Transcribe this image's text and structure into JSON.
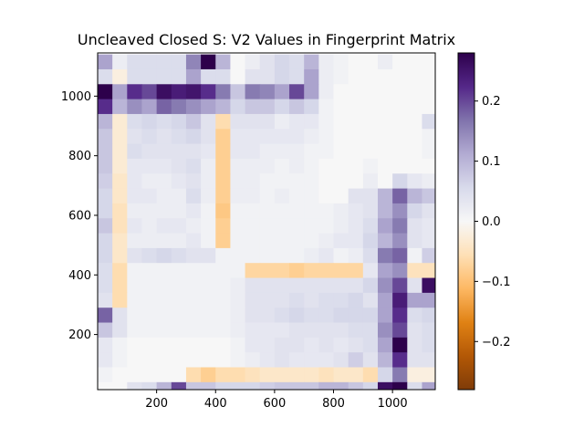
{
  "chart_data": {
    "type": "heatmap",
    "title": "Uncleaved Closed S: V2 Values in Fingerprint Matrix",
    "xlabel": "",
    "ylabel": "",
    "x_range": [
      0,
      1145
    ],
    "y_range": [
      15,
      1145
    ],
    "x_ticks": [
      200,
      400,
      600,
      800,
      1000
    ],
    "y_ticks": [
      200,
      400,
      600,
      800,
      1000
    ],
    "colorbar": {
      "colormap": "PuOr",
      "vmin": -0.28,
      "vmax": 0.28,
      "ticks": [
        -0.2,
        -0.1,
        0.0,
        0.1,
        0.2
      ],
      "tick_labels": [
        "−0.2",
        "−0.1",
        "0.0",
        "0.1",
        "0.2"
      ]
    },
    "grid": false,
    "cell_size": 50,
    "rows_top_to_bottom_y_centers": [
      1115,
      1065,
      1015,
      965,
      915,
      865,
      815,
      765,
      715,
      665,
      615,
      565,
      515,
      465,
      415,
      365,
      315,
      265,
      215,
      165,
      115,
      65,
      15
    ],
    "cols_left_to_right_x_centers": [
      25,
      75,
      125,
      175,
      225,
      275,
      325,
      375,
      425,
      475,
      525,
      575,
      625,
      675,
      725,
      775,
      825,
      875,
      925,
      975,
      1025,
      1075,
      1125
    ],
    "values_top_to_bottom": [
      [
        0.12,
        0.02,
        0.05,
        0.05,
        0.05,
        0.05,
        0.15,
        0.28,
        0.1,
        0.0,
        0.02,
        0.04,
        0.06,
        0.05,
        0.1,
        0.02,
        0.01,
        0.0,
        0.0,
        0.02,
        0.0,
        0.0,
        0.0
      ],
      [
        0.05,
        -0.02,
        0.05,
        0.05,
        0.05,
        0.05,
        0.12,
        0.05,
        0.05,
        0.0,
        0.04,
        0.04,
        0.06,
        0.05,
        0.12,
        0.02,
        0.01,
        0.0,
        0.0,
        0.0,
        0.0,
        0.0,
        0.0
      ],
      [
        0.28,
        0.12,
        0.22,
        0.2,
        0.26,
        0.24,
        0.25,
        0.22,
        0.16,
        0.08,
        0.16,
        0.15,
        0.12,
        0.2,
        0.12,
        0.02,
        0.0,
        0.0,
        0.0,
        0.0,
        0.0,
        0.0,
        0.0
      ],
      [
        0.22,
        0.1,
        0.14,
        0.12,
        0.18,
        0.16,
        0.14,
        0.12,
        0.1,
        0.06,
        0.08,
        0.08,
        0.06,
        0.08,
        0.06,
        0.01,
        0.0,
        0.0,
        0.0,
        0.0,
        0.0,
        0.0,
        0.0
      ],
      [
        0.1,
        -0.03,
        0.05,
        0.06,
        0.05,
        0.06,
        0.08,
        0.04,
        -0.06,
        0.04,
        0.04,
        0.04,
        0.02,
        0.03,
        0.03,
        0.01,
        0.0,
        0.0,
        0.0,
        0.0,
        0.0,
        0.0,
        0.05
      ],
      [
        0.08,
        -0.03,
        0.04,
        0.05,
        0.04,
        0.05,
        0.06,
        0.04,
        -0.08,
        0.03,
        0.03,
        0.03,
        0.03,
        0.03,
        0.02,
        0.01,
        0.0,
        0.0,
        0.0,
        0.0,
        0.0,
        0.0,
        0.01
      ],
      [
        0.08,
        -0.03,
        0.05,
        0.04,
        0.04,
        0.04,
        0.04,
        0.03,
        -0.08,
        0.03,
        0.03,
        0.02,
        0.02,
        0.02,
        0.01,
        0.01,
        0.0,
        0.0,
        0.0,
        0.0,
        0.0,
        0.0,
        0.01
      ],
      [
        0.08,
        -0.03,
        0.03,
        0.03,
        0.03,
        0.04,
        0.05,
        0.02,
        -0.08,
        0.02,
        0.02,
        0.02,
        0.01,
        0.02,
        0.01,
        0.0,
        0.0,
        0.0,
        0.01,
        0.0,
        0.0,
        0.0,
        0.0
      ],
      [
        0.07,
        -0.04,
        0.03,
        0.02,
        0.02,
        0.03,
        0.04,
        0.02,
        -0.08,
        0.02,
        0.02,
        0.01,
        0.01,
        0.01,
        0.01,
        0.0,
        0.0,
        0.0,
        0.02,
        0.0,
        0.06,
        0.03,
        0.02
      ],
      [
        0.06,
        -0.04,
        0.03,
        0.03,
        0.02,
        0.02,
        0.05,
        0.02,
        -0.08,
        0.02,
        0.02,
        0.01,
        0.02,
        0.01,
        0.01,
        0.0,
        0.0,
        0.04,
        0.04,
        0.1,
        0.18,
        0.1,
        0.08
      ],
      [
        0.06,
        -0.05,
        0.02,
        0.02,
        0.02,
        0.02,
        0.03,
        0.01,
        -0.09,
        0.01,
        0.01,
        0.01,
        0.01,
        0.01,
        0.01,
        0.01,
        0.02,
        0.03,
        0.04,
        0.1,
        0.14,
        0.06,
        0.04
      ],
      [
        0.08,
        -0.05,
        0.03,
        0.02,
        0.03,
        0.03,
        0.02,
        0.01,
        -0.08,
        0.01,
        0.01,
        0.01,
        0.01,
        0.01,
        0.01,
        0.01,
        0.02,
        0.03,
        0.05,
        0.12,
        0.16,
        0.04,
        0.03
      ],
      [
        0.06,
        -0.04,
        0.02,
        0.02,
        0.02,
        0.02,
        0.03,
        0.01,
        -0.08,
        0.01,
        0.01,
        0.01,
        0.01,
        0.01,
        0.01,
        0.02,
        0.03,
        0.03,
        0.06,
        0.1,
        0.14,
        0.04,
        0.03
      ],
      [
        0.06,
        -0.04,
        0.04,
        0.05,
        0.06,
        0.05,
        0.04,
        0.04,
        0.01,
        0.01,
        0.01,
        0.01,
        0.01,
        0.01,
        0.02,
        0.03,
        0.01,
        0.02,
        0.05,
        0.16,
        0.18,
        0.01,
        0.07
      ],
      [
        0.05,
        -0.06,
        0.01,
        0.01,
        0.01,
        0.01,
        0.01,
        0.01,
        0.01,
        0.01,
        -0.07,
        -0.07,
        -0.07,
        -0.08,
        -0.07,
        -0.07,
        -0.07,
        -0.07,
        0.03,
        0.12,
        0.14,
        -0.05,
        -0.05
      ],
      [
        0.05,
        -0.06,
        0.01,
        0.01,
        0.01,
        0.01,
        0.01,
        0.01,
        0.01,
        0.02,
        0.04,
        0.04,
        0.04,
        0.04,
        0.04,
        0.04,
        0.04,
        0.04,
        0.06,
        0.14,
        0.2,
        0.04,
        0.26
      ],
      [
        0.04,
        -0.06,
        0.01,
        0.01,
        0.01,
        0.01,
        0.01,
        0.01,
        0.01,
        0.02,
        0.04,
        0.04,
        0.04,
        0.05,
        0.04,
        0.05,
        0.05,
        0.06,
        0.04,
        0.12,
        0.24,
        0.12,
        0.12
      ],
      [
        0.18,
        0.04,
        0.01,
        0.01,
        0.01,
        0.01,
        0.01,
        0.01,
        0.01,
        0.02,
        0.04,
        0.04,
        0.05,
        0.06,
        0.05,
        0.05,
        0.06,
        0.06,
        0.06,
        0.12,
        0.22,
        0.05,
        0.06
      ],
      [
        0.08,
        0.04,
        0.01,
        0.01,
        0.01,
        0.01,
        0.01,
        0.01,
        0.01,
        0.02,
        0.03,
        0.03,
        0.03,
        0.04,
        0.04,
        0.04,
        0.04,
        0.05,
        0.05,
        0.14,
        0.2,
        0.04,
        0.05
      ],
      [
        0.03,
        0.01,
        0.0,
        0.0,
        0.0,
        0.0,
        0.0,
        0.0,
        0.0,
        0.01,
        0.03,
        0.03,
        0.04,
        0.04,
        0.03,
        0.04,
        0.03,
        0.04,
        0.05,
        0.12,
        0.28,
        0.04,
        0.05
      ],
      [
        0.03,
        0.01,
        0.0,
        0.0,
        0.0,
        0.0,
        0.0,
        0.0,
        0.0,
        0.01,
        0.02,
        0.03,
        0.04,
        0.03,
        0.03,
        0.03,
        0.04,
        0.07,
        0.04,
        0.1,
        0.22,
        0.04,
        0.04
      ],
      [
        0.01,
        0.0,
        0.0,
        0.0,
        0.0,
        0.0,
        -0.06,
        -0.08,
        -0.06,
        -0.06,
        -0.05,
        -0.04,
        -0.04,
        -0.04,
        -0.04,
        -0.05,
        -0.04,
        -0.04,
        -0.06,
        0.06,
        0.16,
        -0.02,
        -0.02
      ],
      [
        0.0,
        0.0,
        0.04,
        0.05,
        0.1,
        0.2,
        0.08,
        0.08,
        0.06,
        0.06,
        0.06,
        0.07,
        0.08,
        0.08,
        0.08,
        0.1,
        0.1,
        0.08,
        0.06,
        0.26,
        0.28,
        0.05,
        0.12
      ]
    ]
  }
}
